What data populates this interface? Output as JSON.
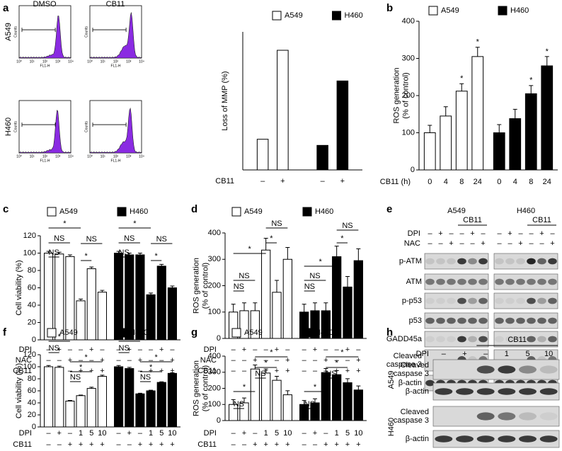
{
  "panels": {
    "a": {
      "letter": "a",
      "flow": {
        "columns": [
          "DMSO",
          "CB11"
        ],
        "rows": [
          "A549",
          "H460"
        ],
        "x_label": "FL1-H",
        "y_label": "Counts",
        "x_tick_labels": [
          "10⁰",
          "10¹",
          "10²",
          "10³",
          "10⁴"
        ]
      },
      "chart": {
        "type": "bar",
        "y_label": [
          "Loss of MMP (%)"
        ],
        "ylim": [
          0,
          45
        ],
        "rows": [
          {
            "label": "CB11",
            "signs": [
              "–",
              "+"
            ]
          }
        ],
        "series": [
          {
            "name": "A549",
            "color": "#ffffff",
            "values": [
              10,
              39
            ]
          },
          {
            "name": "H460",
            "color": "#000000",
            "values": [
              8,
              29
            ]
          }
        ]
      }
    },
    "b": {
      "letter": "b",
      "type": "bar",
      "y_label": [
        "ROS generation",
        "(% of control)"
      ],
      "ylim": [
        0,
        400
      ],
      "yticks": [
        0,
        100,
        200,
        300,
        400
      ],
      "rows": [
        {
          "label": "CB11 (h)",
          "signs": [
            "0",
            "4",
            "8",
            "24"
          ]
        }
      ],
      "series": [
        {
          "name": "A549",
          "color": "#ffffff",
          "values": [
            100,
            145,
            212,
            305
          ],
          "errors": [
            20,
            25,
            20,
            25
          ]
        },
        {
          "name": "H460",
          "color": "#000000",
          "values": [
            100,
            138,
            205,
            280
          ],
          "errors": [
            22,
            25,
            22,
            25
          ]
        }
      ],
      "annotations": [
        "*",
        "*",
        "*",
        "*"
      ]
    },
    "c": {
      "letter": "c",
      "type": "bar",
      "y_label": [
        "Cell viability (%)"
      ],
      "ylim": [
        0,
        120
      ],
      "yticks": [
        0,
        20,
        40,
        60,
        80,
        100,
        120
      ],
      "rows": [
        {
          "label": "DPI",
          "signs": [
            "–",
            "+",
            "–",
            "–",
            "+",
            "–"
          ]
        },
        {
          "label": "NAC",
          "signs": [
            "–",
            "–",
            "+",
            "–",
            "–",
            "+"
          ]
        },
        {
          "label": "CB11",
          "signs": [
            "–",
            "–",
            "–",
            "+",
            "+",
            "+"
          ]
        }
      ],
      "series": [
        {
          "name": "A549",
          "color": "#ffffff",
          "values": [
            100,
            99,
            96,
            45,
            82,
            55
          ],
          "errors": [
            2,
            2,
            2,
            2,
            2,
            2
          ]
        },
        {
          "name": "H460",
          "color": "#000000",
          "values": [
            100,
            98,
            98,
            52,
            85,
            60
          ],
          "errors": [
            2,
            2,
            2,
            2,
            2,
            2
          ]
        }
      ],
      "annotations": [
        "*",
        "NS",
        "NS",
        "NS",
        "*",
        "*",
        "NS",
        "NS",
        "NS",
        "*"
      ]
    },
    "d": {
      "letter": "d",
      "type": "bar",
      "y_label": [
        "ROS generation",
        "(% of control)"
      ],
      "ylim": [
        0,
        400
      ],
      "yticks": [
        0,
        100,
        200,
        300,
        400
      ],
      "rows": [
        {
          "label": "DPI",
          "signs": [
            "–",
            "+",
            "–",
            "–",
            "+",
            "–"
          ]
        },
        {
          "label": "NAC",
          "signs": [
            "–",
            "–",
            "+",
            "–",
            "–",
            "+"
          ]
        },
        {
          "label": "CB11",
          "signs": [
            "–",
            "–",
            "–",
            "+",
            "+",
            "+"
          ]
        }
      ],
      "series": [
        {
          "name": "A549",
          "color": "#ffffff",
          "values": [
            100,
            105,
            105,
            335,
            175,
            300
          ],
          "errors": [
            30,
            30,
            30,
            45,
            45,
            45
          ]
        },
        {
          "name": "H460",
          "color": "#000000",
          "values": [
            100,
            105,
            105,
            310,
            195,
            295
          ],
          "errors": [
            30,
            30,
            30,
            40,
            40,
            45
          ]
        }
      ],
      "annotations": [
        "*",
        "NS",
        "*",
        "NS",
        "NS",
        "*",
        "NS",
        "*",
        "NS",
        "NS"
      ]
    },
    "e": {
      "letter": "e",
      "cell_lines": [
        "A549",
        "H460"
      ],
      "treatment": "CB11",
      "rows": [
        {
          "label": "DPI",
          "signs": [
            "–",
            "+",
            "–",
            "–",
            "+",
            "–"
          ]
        },
        {
          "label": "NAC",
          "signs": [
            "–",
            "–",
            "+",
            "–",
            "–",
            "+"
          ]
        }
      ],
      "proteins": [
        [
          "p-ATM"
        ],
        [
          "ATM"
        ],
        [
          "p-p53"
        ],
        [
          "p53"
        ],
        [
          "GADD45a"
        ],
        [
          "Cleaved",
          "caspase 3"
        ],
        [
          "β-actin"
        ]
      ]
    },
    "f": {
      "letter": "f",
      "type": "bar",
      "y_label": [
        "Cell viability (%)"
      ],
      "ylim": [
        0,
        120
      ],
      "yticks": [
        0,
        20,
        40,
        60,
        80,
        100,
        120
      ],
      "rows": [
        {
          "label": "DPI",
          "signs": [
            "–",
            "+",
            "–",
            "1",
            "5",
            "10"
          ]
        },
        {
          "label": "CB11",
          "signs": [
            "–",
            "–",
            "+",
            "+",
            "+",
            "+"
          ]
        }
      ],
      "series": [
        {
          "name": "A549",
          "color": "#ffffff",
          "values": [
            100,
            99,
            43,
            52,
            64,
            84
          ],
          "errors": [
            2,
            2,
            1,
            1,
            2,
            2
          ]
        },
        {
          "name": "H460",
          "color": "#000000",
          "values": [
            100,
            97,
            55,
            60,
            74,
            89
          ],
          "errors": [
            2,
            2,
            1,
            1,
            1,
            1
          ]
        }
      ],
      "annotations": [
        "*",
        "NS",
        "*",
        "*",
        "NS",
        "*",
        "NS",
        "*",
        "*",
        "NS"
      ]
    },
    "g": {
      "letter": "g",
      "type": "bar",
      "y_label": [
        "ROS generation",
        "(% of control)"
      ],
      "ylim": [
        0,
        400
      ],
      "yticks": [
        0,
        100,
        200,
        300,
        400
      ],
      "rows": [
        {
          "label": "DPI",
          "signs": [
            "–",
            "+",
            "–",
            "1",
            "5",
            "10"
          ]
        },
        {
          "label": "CB11",
          "signs": [
            "–",
            "–",
            "+",
            "+",
            "+",
            "+"
          ]
        }
      ],
      "series": [
        {
          "name": "A549",
          "color": "#ffffff",
          "values": [
            100,
            110,
            320,
            295,
            250,
            160
          ],
          "errors": [
            30,
            30,
            25,
            25,
            25,
            25
          ]
        },
        {
          "name": "H460",
          "color": "#000000",
          "values": [
            100,
            110,
            298,
            285,
            235,
            190
          ],
          "errors": [
            25,
            25,
            25,
            25,
            25,
            25
          ]
        }
      ],
      "annotations": [
        "NS",
        "*",
        "NS",
        "*",
        "*",
        "NS",
        "*",
        "NS",
        "*",
        "*"
      ]
    },
    "h": {
      "letter": "h",
      "treatment": "CB11",
      "row": {
        "label": "DPI",
        "signs": [
          "–",
          "+",
          "–",
          "1",
          "5",
          "10"
        ]
      },
      "cell_lines": [
        "A549",
        "H460"
      ],
      "proteins": [
        [
          "Cleaved",
          "caspase 3"
        ],
        [
          "β-actin"
        ]
      ]
    }
  }
}
